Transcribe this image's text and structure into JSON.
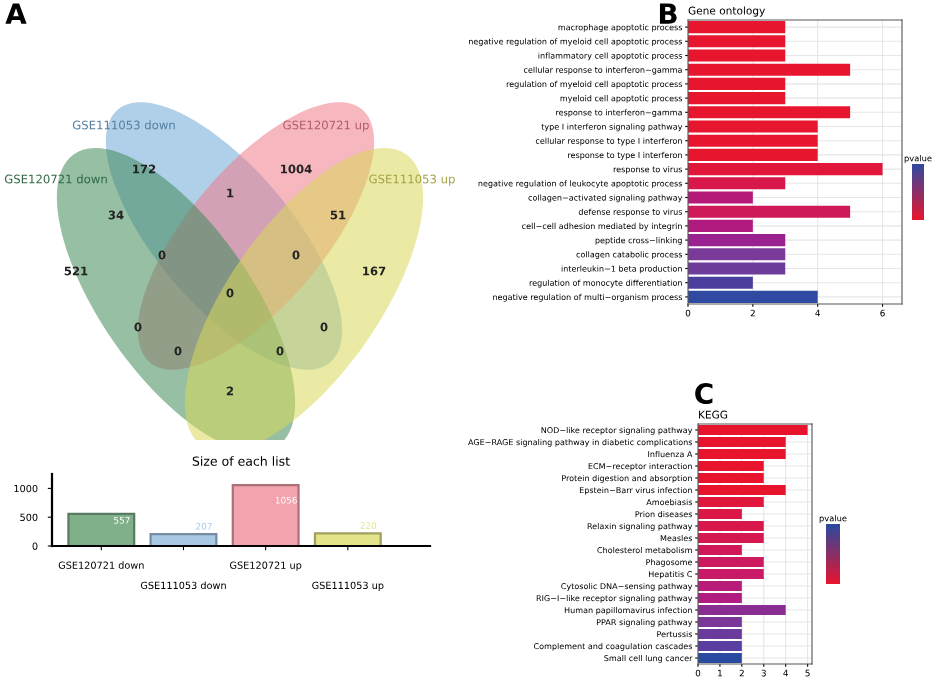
{
  "chart_data": [
    {
      "type": "other",
      "annotations": [
        "A",
        "172",
        "1004",
        "34",
        "1",
        "51",
        "521",
        "0",
        "0",
        "167",
        "0",
        "0",
        "0",
        "0",
        "0",
        "2"
      ],
      "categories": [
        "GSE111053 down",
        "GSE120721 up",
        "GSE120721 down",
        "GSE111053 up"
      ],
      "colors": [
        "#6fa8d6",
        "#ee7b8a",
        "#3f8a5a",
        "#d8d85a"
      ]
    },
    {
      "type": "bar",
      "title": "Size of each list",
      "categories": [
        "GSE120721 down",
        "GSE111053 down",
        "GSE120721 up",
        "GSE111053 up"
      ],
      "values": [
        557,
        207,
        1056,
        220
      ],
      "colors": [
        "#7fb08a",
        "#a9c8e4",
        "#f2a3ad",
        "#e4e48a"
      ],
      "data_labels": true,
      "ylim": [
        0,
        1250
      ],
      "yticks": [
        0,
        500,
        1000
      ],
      "grid": false
    },
    {
      "type": "bar",
      "orientation": "horizontal",
      "title": "Gene ontology",
      "annotations": [
        "B"
      ],
      "clabel": "pvalue",
      "grid": true,
      "categories": [
        "macrophage apoptotic process",
        "negative regulation of myeloid cell apoptotic process",
        "inflammatory cell apoptotic process",
        "cellular response to interferon−gamma",
        "regulation of myeloid cell apoptotic process",
        "myeloid cell apoptotic process",
        "response to interferon−gamma",
        "type I interferon signaling pathway",
        "cellular response to type I interferon",
        "response to type I interferon",
        "response to virus",
        "negative regulation of leukocyte apoptotic process",
        "collagen−activated signaling pathway",
        "defense response to virus",
        "cell−cell adhesion mediated by integrin",
        "peptide cross−linking",
        "collagen catabolic process",
        "interleukin−1 beta production",
        "regulation of monocyte differentiation",
        "negative regulation of multi−organism process"
      ],
      "values": [
        3,
        3,
        3,
        5,
        3,
        3,
        5,
        4,
        4,
        4,
        6,
        3,
        2,
        5,
        2,
        3,
        3,
        3,
        2,
        4
      ],
      "colors": [
        "#e8152e",
        "#e8152e",
        "#e8152e",
        "#e8152e",
        "#e8152e",
        "#e8152e",
        "#e8152e",
        "#e8152e",
        "#e8152e",
        "#e8152e",
        "#e0163a",
        "#d8174a",
        "#b51a78",
        "#d0195a",
        "#b01a7e",
        "#9a2190",
        "#7a3a9a",
        "#6e3d9c",
        "#4a3f9e",
        "#2f4aa0"
      ],
      "xlim": [
        0,
        6.6
      ],
      "xticks": [
        0,
        2,
        4,
        6
      ]
    },
    {
      "type": "bar",
      "orientation": "horizontal",
      "title": "KEGG",
      "annotations": [
        "C"
      ],
      "clabel": "pvalue",
      "grid": true,
      "categories": [
        "NOD−like receptor signaling pathway",
        "AGE−RAGE signaling pathway in diabetic complications",
        "Influenza A",
        "ECM−receptor interaction",
        "Protein digestion and absorption",
        "Epstein−Barr virus infection",
        "Amoebiasis",
        "Prion diseases",
        "Relaxin signaling pathway",
        "Measles",
        "Cholesterol metabolism",
        "Phagosome",
        "Hepatitis C",
        "Cytosolic DNA−sensing pathway",
        "RIG−I−like receptor signaling pathway",
        "Human papillomavirus infection",
        "PPAR signaling pathway",
        "Pertussis",
        "Complement and coagulation cascades",
        "Small cell lung cancer"
      ],
      "values": [
        5,
        4,
        4,
        3,
        3,
        4,
        3,
        2,
        3,
        3,
        2,
        3,
        3,
        2,
        2,
        4,
        2,
        2,
        2,
        2
      ],
      "colors": [
        "#e8142e",
        "#e8142e",
        "#e8142e",
        "#e8142e",
        "#e8142e",
        "#e8142e",
        "#e0163c",
        "#db1745",
        "#d8184a",
        "#d51850",
        "#d01858",
        "#cc1a60",
        "#c81a66",
        "#b81c78",
        "#b01c80",
        "#8a2d92",
        "#7a3698",
        "#6a3a9c",
        "#5a3ea0",
        "#2a4aa0"
      ],
      "xlim": [
        0,
        5.2
      ],
      "xticks": [
        0,
        1,
        2,
        3,
        4,
        5
      ]
    }
  ]
}
